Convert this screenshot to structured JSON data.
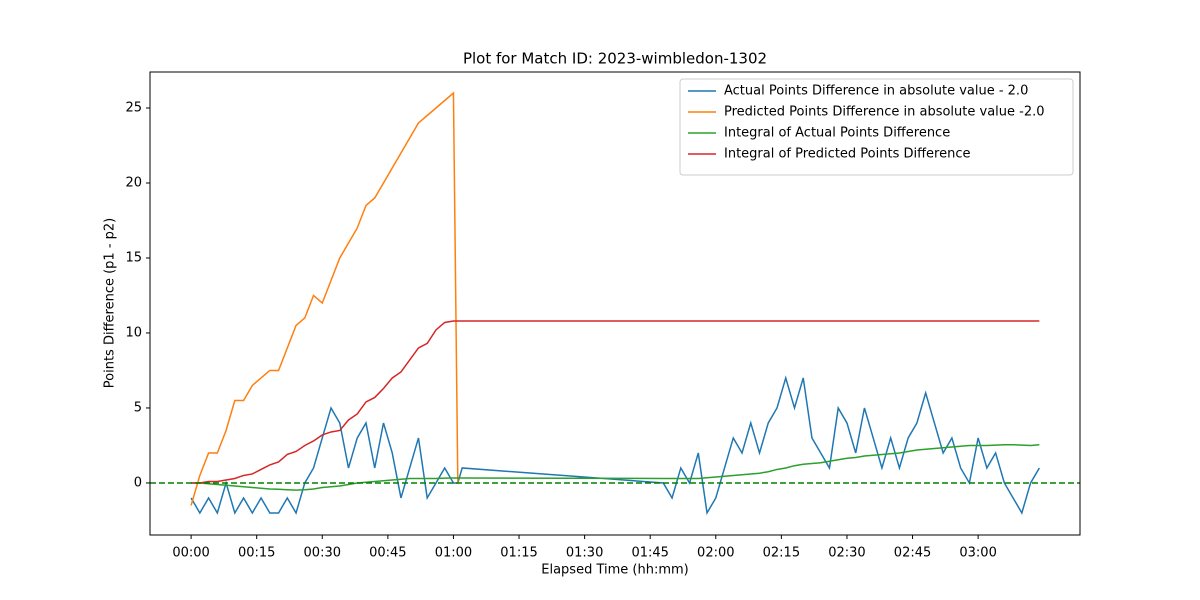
{
  "chart_data": {
    "type": "line",
    "title": "Plot for Match ID: 2023-wimbledon-1302",
    "xlabel": "Elapsed Time (hh:mm)",
    "ylabel": "Points Difference (p1 - p2)",
    "x": [
      0,
      2,
      4,
      6,
      8,
      10,
      12,
      14,
      16,
      18,
      20,
      22,
      24,
      26,
      28,
      30,
      32,
      34,
      36,
      38,
      40,
      42,
      44,
      46,
      48,
      50,
      52,
      54,
      56,
      58,
      60,
      61,
      62,
      108,
      110,
      112,
      114,
      116,
      118,
      120,
      122,
      124,
      126,
      128,
      130,
      132,
      134,
      136,
      138,
      140,
      142,
      144,
      146,
      148,
      150,
      152,
      154,
      156,
      158,
      160,
      162,
      164,
      166,
      168,
      170,
      172,
      174,
      176,
      178,
      180,
      182,
      184,
      186,
      188,
      190,
      192,
      194
    ],
    "series": [
      {
        "name": "Actual Points Difference in absolute value - 2.0",
        "color": "#1f77b4",
        "values": [
          -1,
          -2,
          -1,
          -2,
          0,
          -2,
          -1,
          -2,
          -1,
          -2,
          -2,
          -1,
          -2,
          0,
          1,
          3,
          5,
          4,
          1,
          3,
          4,
          1,
          4,
          2,
          -1,
          1,
          3,
          -1,
          0,
          1,
          0,
          0,
          1,
          0,
          -1,
          1,
          0,
          2,
          -2,
          -1,
          1,
          3,
          2,
          4,
          2,
          4,
          5,
          7,
          5,
          7,
          3,
          2,
          1,
          5,
          4,
          2,
          5,
          3,
          1,
          3,
          1,
          3,
          4,
          6,
          4,
          2,
          3,
          1,
          0,
          3,
          1,
          2,
          0,
          -1,
          -2,
          0,
          1
        ]
      },
      {
        "name": "Predicted Points Difference in absolute value -2.0",
        "color": "#ff7f0e",
        "values": [
          -1.5,
          0.5,
          2,
          2,
          3.5,
          5.5,
          5.5,
          6.5,
          7,
          7.5,
          7.5,
          9,
          10.5,
          11,
          12.5,
          12,
          13.5,
          15,
          16,
          17,
          18.5,
          19,
          20,
          21,
          22,
          23,
          24,
          24.5,
          25,
          25.5,
          26,
          0,
          null,
          null,
          null,
          null,
          null,
          null,
          null,
          null,
          null,
          null,
          null,
          null,
          null,
          null,
          null,
          null,
          null,
          null,
          null,
          null,
          null,
          null,
          null,
          null,
          null,
          null,
          null,
          null,
          null,
          null,
          null,
          null,
          null,
          null,
          null,
          null,
          null,
          null,
          null,
          null,
          null,
          null,
          null,
          null,
          null
        ]
      },
      {
        "name": "Integral of Actual Points Difference",
        "color": "#2ca02c",
        "values": [
          0,
          0,
          -0.05,
          -0.1,
          -0.15,
          -0.2,
          -0.25,
          -0.3,
          -0.35,
          -0.4,
          -0.42,
          -0.45,
          -0.48,
          -0.45,
          -0.4,
          -0.3,
          -0.25,
          -0.2,
          -0.1,
          0,
          0.05,
          0.1,
          0.15,
          0.2,
          0.25,
          0.3,
          0.3,
          0.3,
          0.3,
          0.32,
          0.33,
          0.33,
          0.33,
          0.3,
          0.3,
          0.3,
          0.3,
          0.3,
          0.35,
          0.4,
          0.45,
          0.5,
          0.55,
          0.6,
          0.65,
          0.75,
          0.9,
          1.0,
          1.15,
          1.25,
          1.3,
          1.35,
          1.45,
          1.55,
          1.65,
          1.7,
          1.8,
          1.85,
          1.9,
          1.95,
          2.0,
          2.1,
          2.2,
          2.25,
          2.3,
          2.35,
          2.4,
          2.45,
          2.5,
          2.5,
          2.5,
          2.52,
          2.55,
          2.55,
          2.52,
          2.5,
          2.55
        ]
      },
      {
        "name": "Integral of Predicted Points Difference",
        "color": "#d62728",
        "values": [
          0,
          0,
          0.1,
          0.1,
          0.2,
          0.3,
          0.5,
          0.6,
          0.9,
          1.2,
          1.4,
          1.9,
          2.1,
          2.5,
          2.8,
          3.2,
          3.4,
          3.5,
          4.2,
          4.6,
          5.4,
          5.7,
          6.3,
          7.0,
          7.4,
          8.2,
          9.0,
          9.3,
          10.2,
          10.7,
          10.8,
          10.8,
          10.8,
          10.8,
          10.8,
          10.8,
          10.8,
          10.8,
          10.8,
          10.8,
          10.8,
          10.8,
          10.8,
          10.8,
          10.8,
          10.8,
          10.8,
          10.8,
          10.8,
          10.8,
          10.8,
          10.8,
          10.8,
          10.8,
          10.8,
          10.8,
          10.8,
          10.8,
          10.8,
          10.8,
          10.8,
          10.8,
          10.8,
          10.8,
          10.8,
          10.8,
          10.8,
          10.8,
          10.8,
          10.8,
          10.8,
          10.8,
          10.8,
          10.8,
          10.8,
          10.8,
          10.8
        ]
      }
    ],
    "reference_line": {
      "value": 0,
      "color": "#008000"
    },
    "xlim": [
      -9.4,
      203.3
    ],
    "xticks": [
      {
        "value": 0,
        "label": "00:00"
      },
      {
        "value": 15,
        "label": "00:15"
      },
      {
        "value": 30,
        "label": "00:30"
      },
      {
        "value": 45,
        "label": "00:45"
      },
      {
        "value": 60,
        "label": "01:00"
      },
      {
        "value": 75,
        "label": "01:15"
      },
      {
        "value": 90,
        "label": "01:30"
      },
      {
        "value": 105,
        "label": "01:45"
      },
      {
        "value": 120,
        "label": "02:00"
      },
      {
        "value": 135,
        "label": "02:15"
      },
      {
        "value": 150,
        "label": "02:30"
      },
      {
        "value": 165,
        "label": "02:45"
      },
      {
        "value": 180,
        "label": "03:00"
      }
    ],
    "ylim": [
      -3.47,
      27.4
    ],
    "yticks": [
      0,
      5,
      10,
      15,
      20,
      25
    ],
    "legend": "upper right"
  }
}
